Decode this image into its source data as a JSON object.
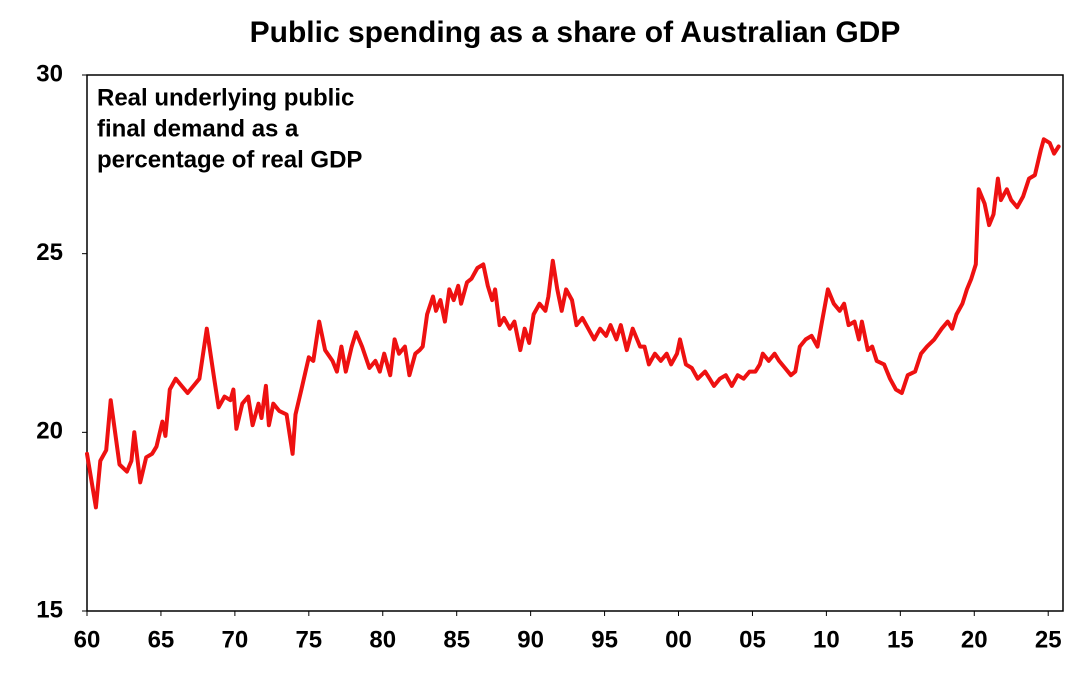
{
  "chart_data": {
    "type": "line",
    "title": "Public spending as a share of Australian GDP",
    "annotation": [
      "Real underlying public",
      "final demand as a",
      "percentage of real GDP"
    ],
    "color": "#ee1111",
    "x": [
      1960.0,
      1960.6,
      1960.9,
      1961.3,
      1961.6,
      1961.9,
      1962.2,
      1962.7,
      1963.0,
      1963.2,
      1963.6,
      1964.0,
      1964.4,
      1964.7,
      1965.1,
      1965.3,
      1965.6,
      1966.0,
      1966.4,
      1966.8,
      1967.2,
      1967.6,
      1968.1,
      1968.6,
      1968.9,
      1969.3,
      1969.7,
      1969.9,
      1970.1,
      1970.5,
      1970.9,
      1971.2,
      1971.6,
      1971.8,
      1972.1,
      1972.3,
      1972.6,
      1973.0,
      1973.5,
      1973.9,
      1974.1,
      1974.5,
      1975.0,
      1975.3,
      1975.7,
      1976.1,
      1976.6,
      1976.9,
      1977.2,
      1977.5,
      1977.9,
      1978.2,
      1978.6,
      1979.1,
      1979.5,
      1979.8,
      1980.1,
      1980.5,
      1980.8,
      1981.1,
      1981.5,
      1981.8,
      1982.2,
      1982.5,
      1982.7,
      1983.0,
      1983.4,
      1983.6,
      1983.9,
      1984.2,
      1984.5,
      1984.8,
      1985.1,
      1985.3,
      1985.7,
      1986.0,
      1986.4,
      1986.8,
      1987.1,
      1987.4,
      1987.6,
      1987.9,
      1988.2,
      1988.6,
      1988.9,
      1989.3,
      1989.6,
      1989.9,
      1990.2,
      1990.6,
      1991.0,
      1991.2,
      1991.5,
      1991.8,
      1992.1,
      1992.4,
      1992.8,
      1993.1,
      1993.5,
      1993.9,
      1994.3,
      1994.7,
      1995.1,
      1995.4,
      1995.8,
      1996.1,
      1996.5,
      1996.9,
      1997.4,
      1997.7,
      1998.0,
      1998.4,
      1998.8,
      1999.2,
      1999.5,
      1999.9,
      2000.1,
      2000.5,
      2000.9,
      2001.3,
      2001.8,
      2002.1,
      2002.4,
      2002.8,
      2003.2,
      2003.6,
      2004.0,
      2004.4,
      2004.8,
      2005.2,
      2005.5,
      2005.7,
      2006.1,
      2006.5,
      2006.8,
      2007.2,
      2007.6,
      2007.9,
      2008.2,
      2008.6,
      2009.0,
      2009.4,
      2009.7,
      2010.1,
      2010.5,
      2010.9,
      2011.2,
      2011.5,
      2011.9,
      2012.2,
      2012.4,
      2012.8,
      2013.1,
      2013.4,
      2013.9,
      2014.3,
      2014.7,
      2015.1,
      2015.5,
      2016.0,
      2016.4,
      2016.8,
      2017.3,
      2017.8,
      2018.2,
      2018.5,
      2018.8,
      2019.2,
      2019.5,
      2019.8,
      2020.1,
      2020.3,
      2020.7,
      2021.0,
      2021.3,
      2021.6,
      2021.8,
      2022.2,
      2022.5,
      2022.9,
      2023.3,
      2023.7,
      2024.1,
      2024.5,
      2024.7,
      2025.1,
      2025.4,
      2025.7
    ],
    "values": [
      19.4,
      17.9,
      19.2,
      19.5,
      20.9,
      20.0,
      19.1,
      18.9,
      19.2,
      20.0,
      18.6,
      19.3,
      19.4,
      19.6,
      20.3,
      19.9,
      21.2,
      21.5,
      21.3,
      21.1,
      21.3,
      21.5,
      22.9,
      21.5,
      20.7,
      21.0,
      20.9,
      21.2,
      20.1,
      20.8,
      21.0,
      20.2,
      20.8,
      20.4,
      21.3,
      20.2,
      20.8,
      20.6,
      20.5,
      19.4,
      20.5,
      21.2,
      22.1,
      22.0,
      23.1,
      22.3,
      22.0,
      21.7,
      22.4,
      21.7,
      22.4,
      22.8,
      22.4,
      21.8,
      22.0,
      21.7,
      22.2,
      21.6,
      22.6,
      22.2,
      22.4,
      21.6,
      22.2,
      22.3,
      22.4,
      23.3,
      23.8,
      23.4,
      23.7,
      23.1,
      24.0,
      23.7,
      24.1,
      23.6,
      24.2,
      24.3,
      24.6,
      24.7,
      24.1,
      23.7,
      24.0,
      23.0,
      23.2,
      22.9,
      23.1,
      22.3,
      22.9,
      22.5,
      23.3,
      23.6,
      23.4,
      23.8,
      24.8,
      24.0,
      23.4,
      24.0,
      23.7,
      23.0,
      23.2,
      22.9,
      22.6,
      22.9,
      22.7,
      23.0,
      22.6,
      23.0,
      22.3,
      22.9,
      22.4,
      22.4,
      21.9,
      22.2,
      22.0,
      22.2,
      21.9,
      22.2,
      22.6,
      21.9,
      21.8,
      21.5,
      21.7,
      21.5,
      21.3,
      21.5,
      21.6,
      21.3,
      21.6,
      21.5,
      21.7,
      21.7,
      21.9,
      22.2,
      22.0,
      22.2,
      22.0,
      21.8,
      21.6,
      21.7,
      22.4,
      22.6,
      22.7,
      22.4,
      23.1,
      24.0,
      23.6,
      23.4,
      23.6,
      23.0,
      23.1,
      22.6,
      23.1,
      22.3,
      22.4,
      22.0,
      21.9,
      21.5,
      21.2,
      21.1,
      21.6,
      21.7,
      22.2,
      22.4,
      22.6,
      22.9,
      23.1,
      22.9,
      23.3,
      23.6,
      24.0,
      24.3,
      24.7,
      26.8,
      26.4,
      25.8,
      26.1,
      27.1,
      26.5,
      26.8,
      26.5,
      26.3,
      26.6,
      27.1,
      27.2,
      27.9,
      28.2,
      28.1,
      27.8,
      28.0
    ],
    "xlim": [
      1960,
      2026
    ],
    "xticks": [
      {
        "value": 1960,
        "label": "60"
      },
      {
        "value": 1965,
        "label": "65"
      },
      {
        "value": 1970,
        "label": "70"
      },
      {
        "value": 1975,
        "label": "75"
      },
      {
        "value": 1980,
        "label": "80"
      },
      {
        "value": 1985,
        "label": "85"
      },
      {
        "value": 1990,
        "label": "90"
      },
      {
        "value": 1995,
        "label": "95"
      },
      {
        "value": 2000,
        "label": "00"
      },
      {
        "value": 2005,
        "label": "05"
      },
      {
        "value": 2010,
        "label": "10"
      },
      {
        "value": 2015,
        "label": "15"
      },
      {
        "value": 2020,
        "label": "20"
      },
      {
        "value": 2025,
        "label": "25"
      }
    ],
    "ylim": [
      15,
      30
    ],
    "yticks": [
      15,
      20,
      25,
      30
    ],
    "grid": false
  }
}
